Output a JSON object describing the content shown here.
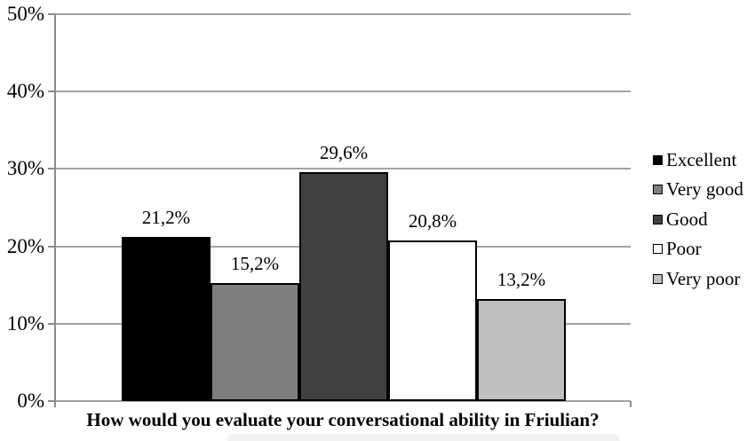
{
  "chart_data": {
    "type": "bar",
    "title": "",
    "xlabel": "How would you evaluate your conversational ability in Friulian?",
    "ylabel": "",
    "ylim": [
      0,
      50
    ],
    "ytick_step": 10,
    "ytick_labels": [
      "0%",
      "10%",
      "20%",
      "30%",
      "40%",
      "50%"
    ],
    "grid": true,
    "legend_position": "right",
    "categories": [
      "Excellent",
      "Very good",
      "Good",
      "Poor",
      "Very poor"
    ],
    "values": [
      21.2,
      15.2,
      29.6,
      20.8,
      13.2
    ],
    "series": [
      {
        "name": "Excellent",
        "value": 21.2,
        "data_label": "21,2%",
        "fill": "#000000"
      },
      {
        "name": "Very good",
        "value": 15.2,
        "data_label": "15,2%",
        "fill": "#7f7f7f"
      },
      {
        "name": "Good",
        "value": 29.6,
        "data_label": "29,6%",
        "fill": "#404040"
      },
      {
        "name": "Poor",
        "value": 20.8,
        "data_label": "20,8%",
        "fill": "#ffffff"
      },
      {
        "name": "Very poor",
        "value": 13.2,
        "data_label": "13,2%",
        "fill": "#bfbfbf"
      }
    ],
    "colors": {
      "gridline": "#a3a3a3",
      "axis": "#8c8c8c",
      "bar_border": "#000000",
      "text": "#000000",
      "background": "#ffffff"
    }
  }
}
